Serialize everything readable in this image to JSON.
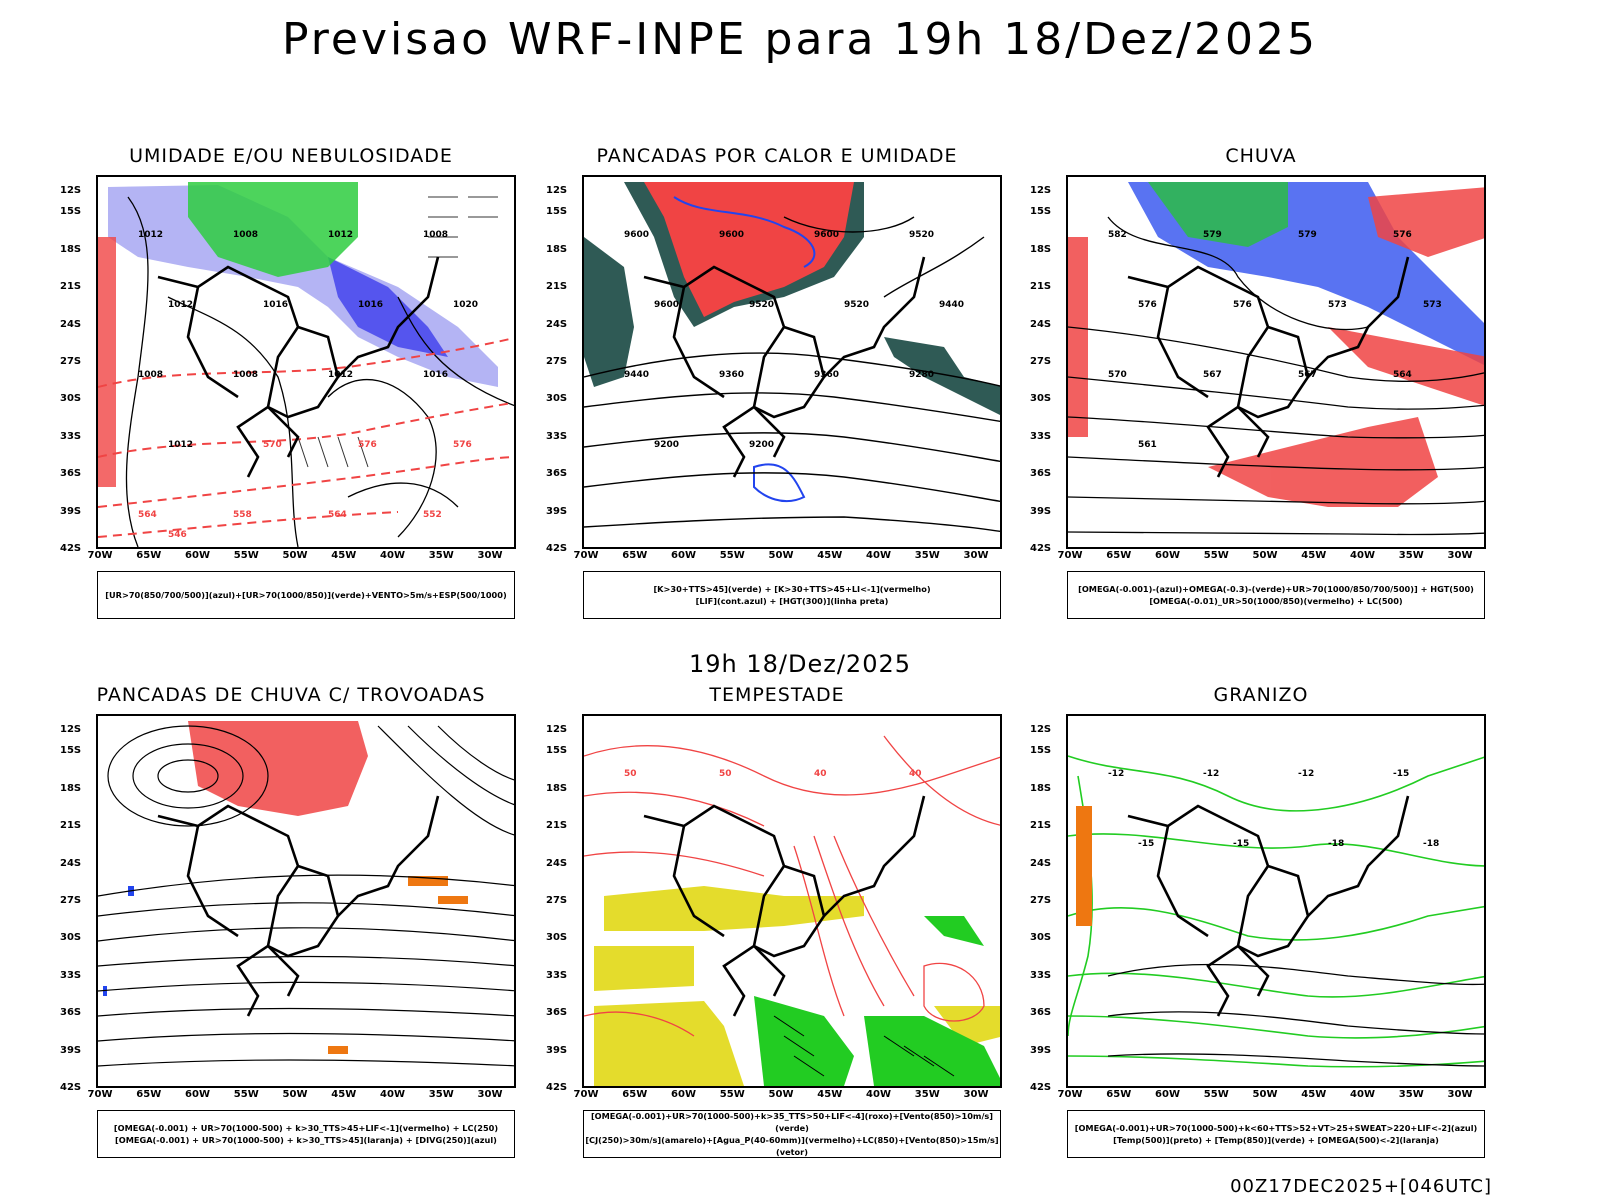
{
  "main_title": "Previsao WRF-INPE  para 19h 18/Dez/2025",
  "mid_title": "19h 18/Dez/2025",
  "footer_stamp": "00Z17DEC2025+[046UTC]",
  "lat_labels": [
    "12S",
    "15S",
    "18S",
    "21S",
    "24S",
    "27S",
    "30S",
    "33S",
    "36S",
    "39S",
    "42S"
  ],
  "lon_labels": [
    "70W",
    "65W",
    "60W",
    "55W",
    "50W",
    "45W",
    "40W",
    "35W",
    "30W"
  ],
  "panels": [
    {
      "title": "UMIDADE E/OU NEBULOSIDADE",
      "legend_line1": "[UR>70(850/700/500)](azul)+[UR>70(1000/850)](verde)+VENTO>5m/s+ESP(500/1000)",
      "legend_line2": "",
      "contour_labels": [
        "1012",
        "1008",
        "1012",
        "1008",
        "1012",
        "1016",
        "1016",
        "1020",
        "1008",
        "1008",
        "1012",
        "1016",
        "1012",
        "570",
        "576",
        "576",
        "564",
        "558",
        "564",
        "552",
        "546"
      ]
    },
    {
      "title": "PANCADAS POR CALOR E UMIDADE",
      "legend_line1": "[K>30+TTS>45](verde) + [K>30+TTS>45+LI<-1](vermelho)",
      "legend_line2": "[LIF](cont.azul) + [HGT(300)](linha preta)",
      "contour_labels": [
        "9600",
        "9600",
        "9600",
        "9520",
        "9600",
        "9520",
        "9520",
        "9440",
        "9440",
        "9360",
        "9360",
        "9280",
        "9200",
        "9200"
      ]
    },
    {
      "title": "CHUVA",
      "legend_line1": "[OMEGA(-0.001)-(azul)+OMEGA(-0.3)-(verde)+UR>70(1000/850/700/500)] + HGT(500)",
      "legend_line2": "[OMEGA(-0.01)_UR>50(1000/850)(vermelho) + LC(500)",
      "contour_labels": [
        "582",
        "579",
        "579",
        "576",
        "576",
        "576",
        "573",
        "573",
        "570",
        "567",
        "567",
        "564",
        "561"
      ]
    },
    {
      "title": "PANCADAS DE CHUVA C/ TROVOADAS",
      "legend_line1": "[OMEGA(-0.001) + UR>70(1000-500) + k>30_TTS>45+LIF<-1](vermelho) + LC(250)",
      "legend_line2": "[OMEGA(-0.001) + UR>70(1000-500) + k>30_TTS>45](laranja) + [DIVG(250)](azul)",
      "contour_labels": []
    },
    {
      "title": "TEMPESTADE",
      "legend_line1": "[OMEGA(-0.001)+UR>70(1000-500)+k>35_TTS>50+LIF<-4](roxo)+[Vento(850)>10m/s](verde)",
      "legend_line2": "[CJ(250)>30m/s](amarelo)+[Agua_P(40-60mm)](vermelho)+LC(850)+[Vento(850)>15m/s](vetor)",
      "contour_labels": [
        "50",
        "50",
        "40",
        "40"
      ]
    },
    {
      "title": "GRANIZO",
      "legend_line1": "[OMEGA(-0.001)+UR>70(1000-500)+k<60+TTS>52+VT>25+SWEAT>220+LIF<-2](azul)",
      "legend_line2": "[Temp(500)](preto) + [Temp(850)](verde) + [OMEGA(500)<-2](laranja)",
      "contour_labels": [
        "-12",
        "-12",
        "-12",
        "-15",
        "-15",
        "-15",
        "-18",
        "-18"
      ]
    }
  ],
  "colors": {
    "red": "#f04444",
    "green": "#22cc22",
    "blue": "#2244ee",
    "lightblue": "#a8a8f0",
    "darkteal": "#2f5a55",
    "yellow": "#e4dc2c",
    "orange": "#ee7711",
    "black": "#000000"
  }
}
